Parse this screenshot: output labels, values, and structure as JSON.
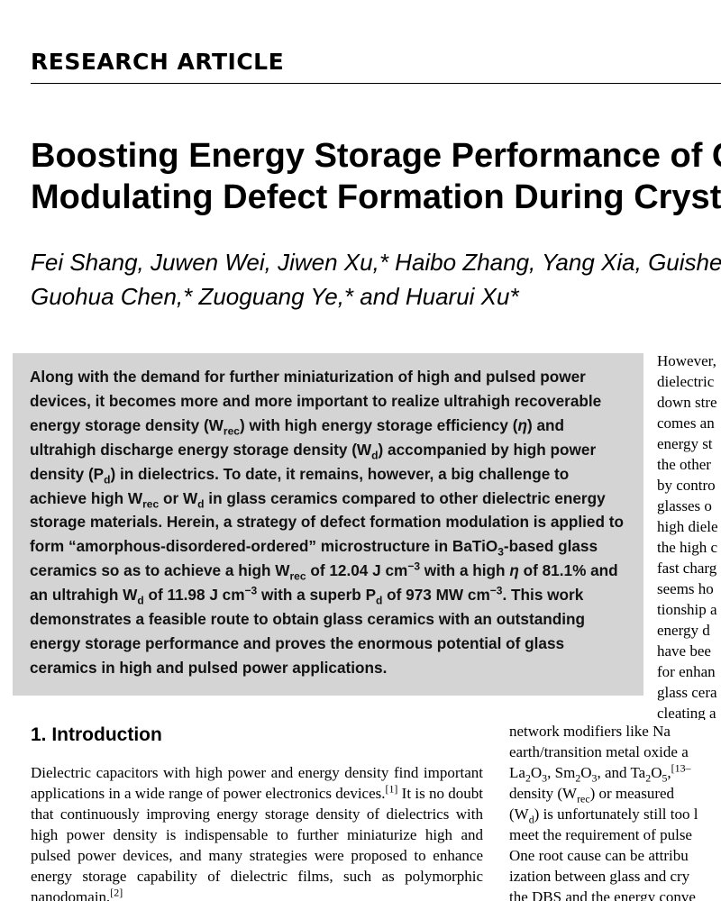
{
  "header": {
    "label": "RESEARCH ARTICLE"
  },
  "title": {
    "line1": "Boosting Energy Storage Performance of Glas",
    "line2": "Modulating Defect Formation During Crystal"
  },
  "authors": {
    "line1": "Fei Shang, Juwen Wei, Jiwen Xu,* Haibo Zhang, Yang Xia, Guishen",
    "line2": "Guohua Chen,* Zuoguang Ye,* and Huarui Xu*"
  },
  "abstract": {
    "t1": "Along with the demand for further miniaturization of high and pulsed power devices, it becomes more and more important to realize ultrahigh recoverable energy storage density (W",
    "s1": "rec",
    "t2": ") with high energy storage efficiency (",
    "eta1": "η",
    "t3": ") and ultrahigh discharge energy storage density (W",
    "s2": "d",
    "t4": ") accompanied by high power density (P",
    "s3": "d",
    "t5": ") in dielectrics. To date, it remains, however, a big challenge to achieve high W",
    "s4": "rec",
    "t6": " or W",
    "s5": "d",
    "t7": " in glass ceramics compared to other dielectric energy storage materials. Herein, a strategy of defect formation modulation is applied to form “amorphous-disordered-ordered” microstructure in BaTiO",
    "s6": "3",
    "t8": "-based glass ceramics so as to achieve a high W",
    "s7": "rec",
    "t9": " of 12.04 J cm",
    "p1": "−3",
    "t10": " with a high ",
    "eta2": "η",
    "t11": " of 81.1% and an ultrahigh W",
    "s8": "d",
    "t12": " of 11.98 J cm",
    "p2": "−3",
    "t13": " with a superb P",
    "s9": "d",
    "t14": " of 973 MW cm",
    "p3": "−3",
    "t15": ". This work demonstrates a feasible route to obtain glass ceramics with an outstanding energy storage performance and proves the enormous potential of glass ceramics in high and pulsed power applications."
  },
  "section": {
    "heading": "1. Introduction"
  },
  "intro": {
    "t1": "Dielectric capacitors with high power and energy density find important applications in a wide range of power electronics devices.",
    "c1": "[1]",
    "t2": " It is no doubt that continuously improving energy storage density of dielectrics with high power density is indispensable to further miniaturize high and pulsed power devices, and many strategies were proposed to enhance energy storage capability of dielectric films, such as polymorphic nanodomain,",
    "c2": "[2]"
  },
  "right_column_top": [
    "However,",
    "dielectric",
    "down stre",
    "comes an",
    "energy st",
    "the other",
    "by contro",
    "glasses o",
    "high diele",
    "the high c",
    "fast charg",
    "seems ho",
    "tionship a",
    "energy d",
    "have bee",
    "for enhan",
    "glass cera",
    "cleating a"
  ],
  "right_column_bottom": {
    "l1": "network   modifiers   like   Na",
    "l2": "earth/transition metal oxide a",
    "l3a": "La",
    "l3s1": "2",
    "l3b": "O",
    "l3s2": "3",
    "l3c": ", Sm",
    "l3s3": "2",
    "l3d": "O",
    "l3s4": "3",
    "l3e": ", and Ta",
    "l3s5": "2",
    "l3f": "O",
    "l3s6": "5",
    "l3g": ",",
    "l3sup": "[13–",
    "l4a": "density (W",
    "l4s": "rec",
    "l4b": ") or measured",
    "l5a": "(W",
    "l5s": "d",
    "l5b": ") is unfortunately still too l",
    "l6": "meet the requirement of pulse",
    "l7": "One root cause can be attribu",
    "l8": "ization between glass and cry",
    "l9": "the DBS and the energy conve"
  }
}
